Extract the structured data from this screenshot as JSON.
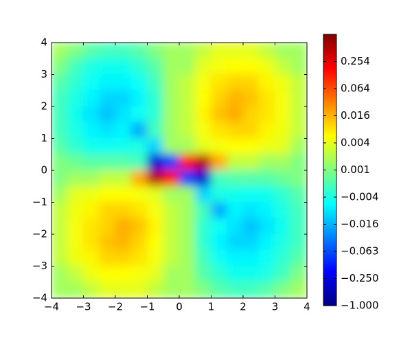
{
  "chart_data": {
    "type": "heatmap",
    "x": [
      -3.75,
      -3.25,
      -2.75,
      -2.25,
      -1.75,
      -1.25,
      -0.75,
      -0.25,
      0.25,
      0.75,
      1.25,
      1.75,
      2.25,
      2.75,
      3.25,
      3.75
    ],
    "y": [
      3.75,
      3.25,
      2.75,
      2.25,
      1.75,
      1.25,
      0.75,
      0.25,
      -0.25,
      -0.75,
      -1.25,
      -1.75,
      -2.25,
      -2.75,
      -3.25,
      -3.75
    ],
    "z": [
      [
        0.002,
        0.001,
        -0.001,
        -0.002,
        -0.002,
        -0.001,
        0.001,
        0.002,
        0.002,
        0.003,
        0.004,
        0.004,
        0.004,
        0.003,
        0.002,
        0.002
      ],
      [
        0.001,
        -0.002,
        -0.004,
        -0.005,
        -0.005,
        -0.003,
        -0.001,
        0.002,
        0.002,
        0.004,
        0.006,
        0.007,
        0.007,
        0.005,
        0.003,
        0.002
      ],
      [
        -0.001,
        -0.003,
        -0.006,
        -0.008,
        -0.008,
        -0.006,
        -0.002,
        0.002,
        0.003,
        0.006,
        0.01,
        0.012,
        0.012,
        0.008,
        0.005,
        0.003
      ],
      [
        -0.002,
        -0.004,
        -0.008,
        -0.012,
        -0.012,
        -0.008,
        -0.003,
        0.002,
        0.003,
        0.007,
        0.012,
        0.016,
        0.014,
        0.01,
        0.006,
        0.003
      ],
      [
        -0.002,
        -0.005,
        -0.01,
        -0.014,
        -0.01,
        -0.006,
        -0.003,
        0.002,
        0.003,
        0.008,
        0.014,
        0.02,
        0.012,
        0.01,
        0.006,
        0.003
      ],
      [
        -0.002,
        -0.004,
        -0.008,
        -0.01,
        -0.008,
        -0.02,
        -0.002,
        0.002,
        0.003,
        0.006,
        0.01,
        0.012,
        0.012,
        0.008,
        0.005,
        0.003
      ],
      [
        -0.001,
        -0.003,
        -0.005,
        -0.006,
        -0.005,
        -0.004,
        -0.012,
        0.002,
        0.002,
        0.004,
        0.006,
        0.007,
        0.007,
        0.005,
        0.004,
        0.002
      ],
      [
        0.001,
        0.0,
        -0.001,
        -0.001,
        -0.001,
        -0.002,
        -0.4,
        -0.1,
        0.2,
        0.6,
        0.02,
        0.003,
        0.003,
        0.002,
        0.002,
        0.001
      ],
      [
        0.001,
        0.002,
        0.002,
        0.003,
        0.003,
        0.02,
        0.6,
        0.2,
        -0.1,
        -0.4,
        -0.002,
        -0.001,
        -0.001,
        -0.001,
        0.0,
        0.001
      ],
      [
        0.002,
        0.004,
        0.005,
        0.007,
        0.007,
        0.006,
        0.004,
        0.002,
        0.002,
        -0.012,
        -0.004,
        -0.005,
        -0.006,
        -0.005,
        -0.003,
        -0.001
      ],
      [
        0.003,
        0.005,
        0.008,
        0.012,
        0.012,
        0.01,
        0.006,
        0.003,
        0.002,
        -0.002,
        -0.02,
        -0.008,
        -0.01,
        -0.008,
        -0.004,
        -0.002
      ],
      [
        0.003,
        0.006,
        0.01,
        0.012,
        0.02,
        0.014,
        0.008,
        0.003,
        0.002,
        -0.003,
        -0.006,
        -0.01,
        -0.014,
        -0.01,
        -0.005,
        -0.002
      ],
      [
        0.003,
        0.006,
        0.01,
        0.014,
        0.016,
        0.012,
        0.007,
        0.003,
        0.002,
        -0.003,
        -0.008,
        -0.012,
        -0.012,
        -0.008,
        -0.004,
        -0.002
      ],
      [
        0.003,
        0.005,
        0.008,
        0.012,
        0.012,
        0.01,
        0.006,
        0.003,
        0.002,
        -0.002,
        -0.006,
        -0.008,
        -0.008,
        -0.006,
        -0.003,
        -0.001
      ],
      [
        0.002,
        0.003,
        0.005,
        0.007,
        0.007,
        0.006,
        0.004,
        0.002,
        0.002,
        -0.001,
        -0.003,
        -0.005,
        -0.005,
        -0.004,
        -0.002,
        0.001
      ],
      [
        0.002,
        0.002,
        0.003,
        0.004,
        0.004,
        0.004,
        0.003,
        0.002,
        0.002,
        0.001,
        -0.001,
        -0.002,
        -0.002,
        -0.001,
        0.001,
        0.002
      ]
    ],
    "xlim": [
      -4,
      4
    ],
    "ylim": [
      -4,
      4
    ],
    "xticks": [
      {
        "value": -4,
        "label": "−4"
      },
      {
        "value": -3,
        "label": "−3"
      },
      {
        "value": -2,
        "label": "−2"
      },
      {
        "value": -1,
        "label": "−1"
      },
      0,
      1,
      2,
      3,
      4
    ],
    "yticks": [
      {
        "value": -4,
        "label": "−4"
      },
      {
        "value": -3,
        "label": "−3"
      },
      {
        "value": -2,
        "label": "−2"
      },
      {
        "value": -1,
        "label": "−1"
      },
      0,
      1,
      2,
      3,
      4
    ],
    "colormap": "jet",
    "clim": [
      -1,
      1
    ],
    "cticks": [
      {
        "value": -1,
        "label": "−1.000"
      },
      {
        "value": -0.25,
        "label": "−0.250"
      },
      {
        "value": -0.063,
        "label": "−0.063"
      },
      {
        "value": -0.016,
        "label": "−0.016"
      },
      {
        "value": -0.004,
        "label": "−0.004"
      },
      0.001,
      0.004,
      0.016,
      0.064,
      0.254
    ]
  }
}
